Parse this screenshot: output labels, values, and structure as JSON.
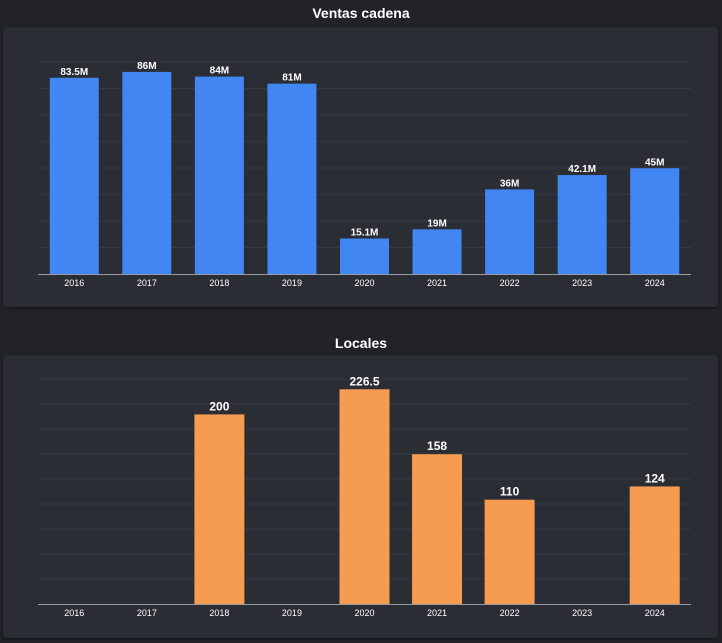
{
  "charts": {
    "sales": {
      "title": "Ventas cadena"
    },
    "stores": {
      "title": "Locales"
    }
  },
  "chart_data": [
    {
      "type": "bar",
      "title": "Ventas cadena",
      "categories": [
        "2016",
        "2017",
        "2018",
        "2019",
        "2020",
        "2021",
        "2022",
        "2023",
        "2024"
      ],
      "values": [
        83.5,
        86,
        84,
        81,
        15.1,
        19,
        36,
        42.1,
        45
      ],
      "labels": [
        "83.5M",
        "86M",
        "84M",
        "81M",
        "15.1M",
        "19M",
        "36M",
        "42.1M",
        "45M"
      ],
      "ylim": [
        0,
        100
      ],
      "color": "#4286f4",
      "xlabel": "",
      "ylabel": ""
    },
    {
      "type": "bar",
      "title": "Locales",
      "categories": [
        "2016",
        "2017",
        "2018",
        "2019",
        "2020",
        "2021",
        "2022",
        "2023",
        "2024"
      ],
      "values": [
        null,
        null,
        200,
        null,
        226.5,
        158,
        110,
        null,
        124
      ],
      "labels": [
        "",
        "",
        "200",
        "",
        "226.5",
        "158",
        "110",
        "",
        "124"
      ],
      "ylim": [
        0,
        250
      ],
      "color": "#f59c50",
      "xlabel": "",
      "ylabel": ""
    }
  ]
}
